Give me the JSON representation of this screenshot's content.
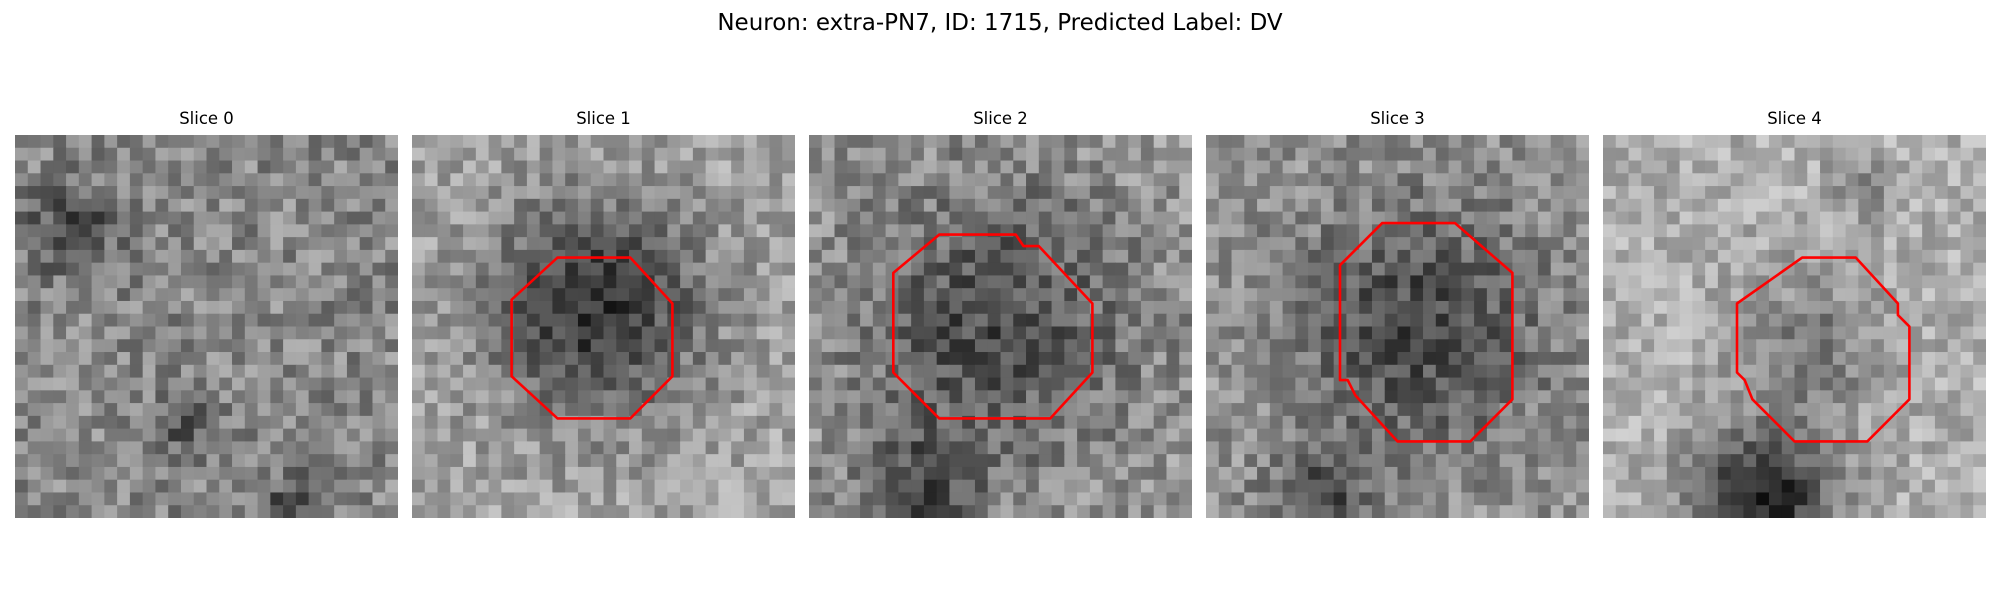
{
  "figure": {
    "title": "Neuron: extra-PN7, ID: 1715, Predicted Label: DV"
  },
  "grid": {
    "cells": 30
  },
  "outline_color": "#ff0000",
  "panels": [
    {
      "title": "Slice 0",
      "image": {
        "kind": "grayscale-noise",
        "seed": 11,
        "base": 135,
        "spread": 85,
        "dark_blobs": [
          [
            0.15,
            0.25,
            0.08,
            70
          ],
          [
            0.45,
            0.75,
            0.06,
            55
          ],
          [
            0.72,
            0.96,
            0.05,
            60
          ]
        ]
      },
      "outline": []
    },
    {
      "title": "Slice 1",
      "image": {
        "kind": "grayscale-noise",
        "seed": 23,
        "base": 165,
        "spread": 75,
        "dark_blobs": [
          [
            0.48,
            0.45,
            0.2,
            115
          ]
        ]
      },
      "outline": [
        [
          0.38,
          0.32
        ],
        [
          0.57,
          0.32
        ],
        [
          0.68,
          0.44
        ],
        [
          0.68,
          0.63
        ],
        [
          0.57,
          0.74
        ],
        [
          0.38,
          0.74
        ],
        [
          0.26,
          0.63
        ],
        [
          0.26,
          0.43
        ]
      ]
    },
    {
      "title": "Slice 2",
      "image": {
        "kind": "grayscale-noise",
        "seed": 37,
        "base": 150,
        "spread": 85,
        "dark_blobs": [
          [
            0.48,
            0.5,
            0.25,
            75
          ],
          [
            0.3,
            0.93,
            0.1,
            70
          ]
        ]
      },
      "outline": [
        [
          0.34,
          0.26
        ],
        [
          0.54,
          0.26
        ],
        [
          0.56,
          0.29
        ],
        [
          0.6,
          0.29
        ],
        [
          0.74,
          0.44
        ],
        [
          0.74,
          0.62
        ],
        [
          0.63,
          0.74
        ],
        [
          0.34,
          0.74
        ],
        [
          0.22,
          0.62
        ],
        [
          0.22,
          0.36
        ]
      ]
    },
    {
      "title": "Slice 3",
      "image": {
        "kind": "grayscale-noise",
        "seed": 53,
        "base": 150,
        "spread": 80,
        "dark_blobs": [
          [
            0.56,
            0.5,
            0.23,
            80
          ],
          [
            0.3,
            0.95,
            0.1,
            70
          ]
        ]
      },
      "outline": [
        [
          0.46,
          0.23
        ],
        [
          0.65,
          0.23
        ],
        [
          0.8,
          0.36
        ],
        [
          0.8,
          0.69
        ],
        [
          0.69,
          0.8
        ],
        [
          0.5,
          0.8
        ],
        [
          0.39,
          0.68
        ],
        [
          0.37,
          0.64
        ],
        [
          0.35,
          0.64
        ],
        [
          0.35,
          0.34
        ]
      ]
    },
    {
      "title": "Slice 4",
      "image": {
        "kind": "grayscale-noise",
        "seed": 71,
        "base": 175,
        "spread": 70,
        "dark_blobs": [
          [
            0.55,
            0.55,
            0.13,
            55
          ],
          [
            0.42,
            0.95,
            0.13,
            140
          ],
          [
            0.67,
            0.13,
            0.05,
            55
          ]
        ]
      },
      "outline": [
        [
          0.52,
          0.32
        ],
        [
          0.66,
          0.32
        ],
        [
          0.77,
          0.44
        ],
        [
          0.77,
          0.47
        ],
        [
          0.8,
          0.5
        ],
        [
          0.8,
          0.69
        ],
        [
          0.69,
          0.8
        ],
        [
          0.5,
          0.8
        ],
        [
          0.39,
          0.69
        ],
        [
          0.37,
          0.64
        ],
        [
          0.35,
          0.62
        ],
        [
          0.35,
          0.44
        ]
      ]
    }
  ]
}
